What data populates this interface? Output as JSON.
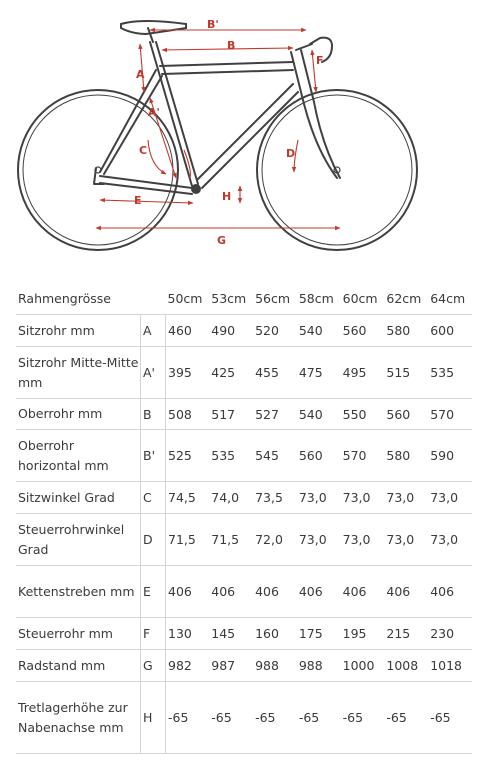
{
  "colors": {
    "frame": "#404040",
    "dimension": "#c0392b",
    "rule": "#d4d4d4"
  },
  "diagram_labels": [
    "B'",
    "B",
    "A",
    "F",
    "A'",
    "C",
    "D",
    "H",
    "E",
    "G"
  ],
  "table": {
    "header": "Rahmengrösse",
    "sizes": [
      "50cm",
      "53cm",
      "56cm",
      "58cm",
      "60cm",
      "62cm",
      "64cm"
    ],
    "rows": [
      {
        "label": "Sitzrohr mm",
        "letter": "A",
        "values": [
          "460",
          "490",
          "520",
          "540",
          "560",
          "580",
          "600"
        ]
      },
      {
        "label": "Sitzrohr Mitte-Mitte mm",
        "letter": "A'",
        "values": [
          "395",
          "425",
          "455",
          "475",
          "495",
          "515",
          "535"
        ]
      },
      {
        "label": "Oberrohr mm",
        "letter": "B",
        "values": [
          "508",
          "517",
          "527",
          "540",
          "550",
          "560",
          "570"
        ]
      },
      {
        "label": "Oberrohr horizontal mm",
        "letter": "B'",
        "values": [
          "525",
          "535",
          "545",
          "560",
          "570",
          "580",
          "590"
        ]
      },
      {
        "label": "Sitzwinkel Grad",
        "letter": "C",
        "values": [
          "74,5",
          "74,0",
          "73,5",
          "73,0",
          "73,0",
          "73,0",
          "73,0"
        ]
      },
      {
        "label": "Steuerrohrwinkel Grad",
        "letter": "D",
        "values": [
          "71,5",
          "71,5",
          "72,0",
          "73,0",
          "73,0",
          "73,0",
          "73,0"
        ]
      },
      {
        "label": "Kettenstreben mm",
        "letter": "E",
        "values": [
          "406",
          "406",
          "406",
          "406",
          "406",
          "406",
          "406"
        ]
      },
      {
        "label": "Steuerrohr mm",
        "letter": "F",
        "values": [
          "130",
          "145",
          "160",
          "175",
          "195",
          "215",
          "230"
        ]
      },
      {
        "label": "Radstand mm",
        "letter": "G",
        "values": [
          "982",
          "987",
          "988",
          "988",
          "1000",
          "1008",
          "1018"
        ]
      },
      {
        "label": "Tretlagerhöhe zur Nabenachse mm",
        "letter": "H",
        "values": [
          "-65",
          "-65",
          "-65",
          "-65",
          "-65",
          "-65",
          "-65"
        ]
      }
    ]
  }
}
